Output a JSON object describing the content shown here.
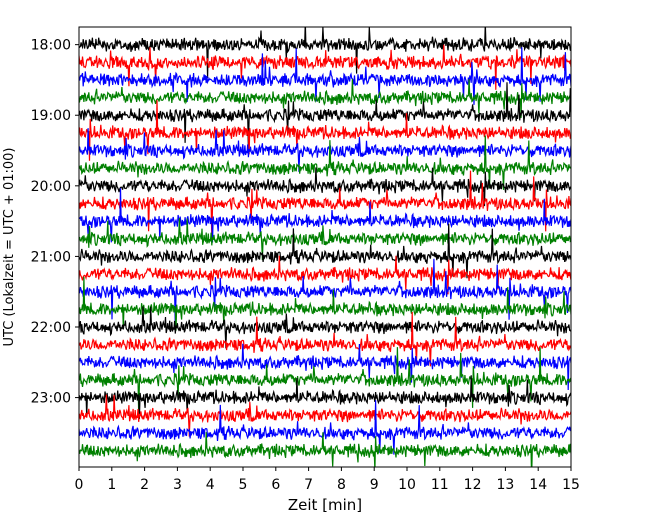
{
  "chart_data": {
    "type": "line",
    "title": "",
    "xlabel": "Zeit  [min]",
    "ylabel": "UTC (Lokalzeit = UTC + 01:00)",
    "xlim": [
      0,
      15
    ],
    "ylim": [
      "23:59",
      "17:45"
    ],
    "xticks": [
      "0",
      "1",
      "2",
      "3",
      "4",
      "5",
      "6",
      "7",
      "8",
      "9",
      "10",
      "11",
      "12",
      "13",
      "14",
      "15"
    ],
    "yticks": [
      "18:00",
      "19:00",
      "20:00",
      "21:00",
      "22:00",
      "23:00"
    ],
    "trace_interval_min": 15,
    "color_cycle": [
      "#000000",
      "#ff0000",
      "#0000ff",
      "#008000"
    ],
    "trace_start_times": [
      "18:00",
      "18:15",
      "18:30",
      "18:45",
      "19:00",
      "19:15",
      "19:30",
      "19:45",
      "20:00",
      "20:15",
      "20:30",
      "20:45",
      "21:00",
      "21:15",
      "21:30",
      "21:45",
      "22:00",
      "22:15",
      "22:30",
      "22:45",
      "23:00",
      "23:15",
      "23:30",
      "23:45"
    ],
    "grid": false,
    "legend": "none"
  }
}
